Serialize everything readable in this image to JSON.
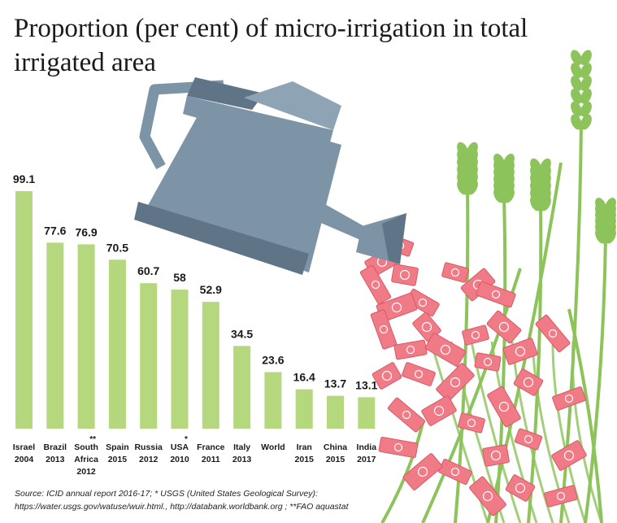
{
  "title_line1": "Proportion (per cent) of micro-irrigation in total",
  "title_line2": "irrigated area",
  "source_line1": "Source: ICID annual report 2016-17; * USGS (United States Geological Survey):",
  "source_line2": "https://water.usgs.gov/watuse/wuir.html., http://databank.worldbank.org ; **FAO aquastat",
  "colors": {
    "bar": "#b5d77d",
    "text": "#1a1a1a",
    "can": "#7d94a6",
    "can_dark": "#5f7486",
    "wheat": "#8cc35a",
    "money": "#f07b86"
  },
  "chart_data": {
    "type": "bar",
    "title": "Proportion (per cent) of micro-irrigation in total irrigated area",
    "categories": [
      {
        "line1": "Israel",
        "line2": "2004",
        "line3": "",
        "marker": ""
      },
      {
        "line1": "Brazil",
        "line2": "2013",
        "line3": "",
        "marker": ""
      },
      {
        "line1": "South",
        "line2": "Africa",
        "line3": "2012",
        "marker": "**"
      },
      {
        "line1": "Spain",
        "line2": "2015",
        "line3": "",
        "marker": ""
      },
      {
        "line1": "Russia",
        "line2": "2012",
        "line3": "",
        "marker": ""
      },
      {
        "line1": "USA",
        "line2": "2010",
        "line3": "",
        "marker": "*"
      },
      {
        "line1": "France",
        "line2": "2011",
        "line3": "",
        "marker": ""
      },
      {
        "line1": "Italy",
        "line2": "2013",
        "line3": "",
        "marker": ""
      },
      {
        "line1": "World",
        "line2": "",
        "line3": "",
        "marker": ""
      },
      {
        "line1": "Iran",
        "line2": "2015",
        "line3": "",
        "marker": ""
      },
      {
        "line1": "China",
        "line2": "2015",
        "line3": "",
        "marker": ""
      },
      {
        "line1": "India",
        "line2": "2017",
        "line3": "",
        "marker": ""
      }
    ],
    "values": [
      99.1,
      77.6,
      76.9,
      70.5,
      60.7,
      58,
      52.9,
      34.5,
      23.6,
      16.4,
      13.7,
      13.1
    ],
    "value_labels": [
      "99.1",
      "77.6",
      "76.9",
      "70.5",
      "60.7",
      "58",
      "52.9",
      "34.5",
      "23.6",
      "16.4",
      "13.7",
      "13.1"
    ],
    "ylim": [
      0,
      100
    ],
    "grid": false,
    "legend": "none"
  }
}
